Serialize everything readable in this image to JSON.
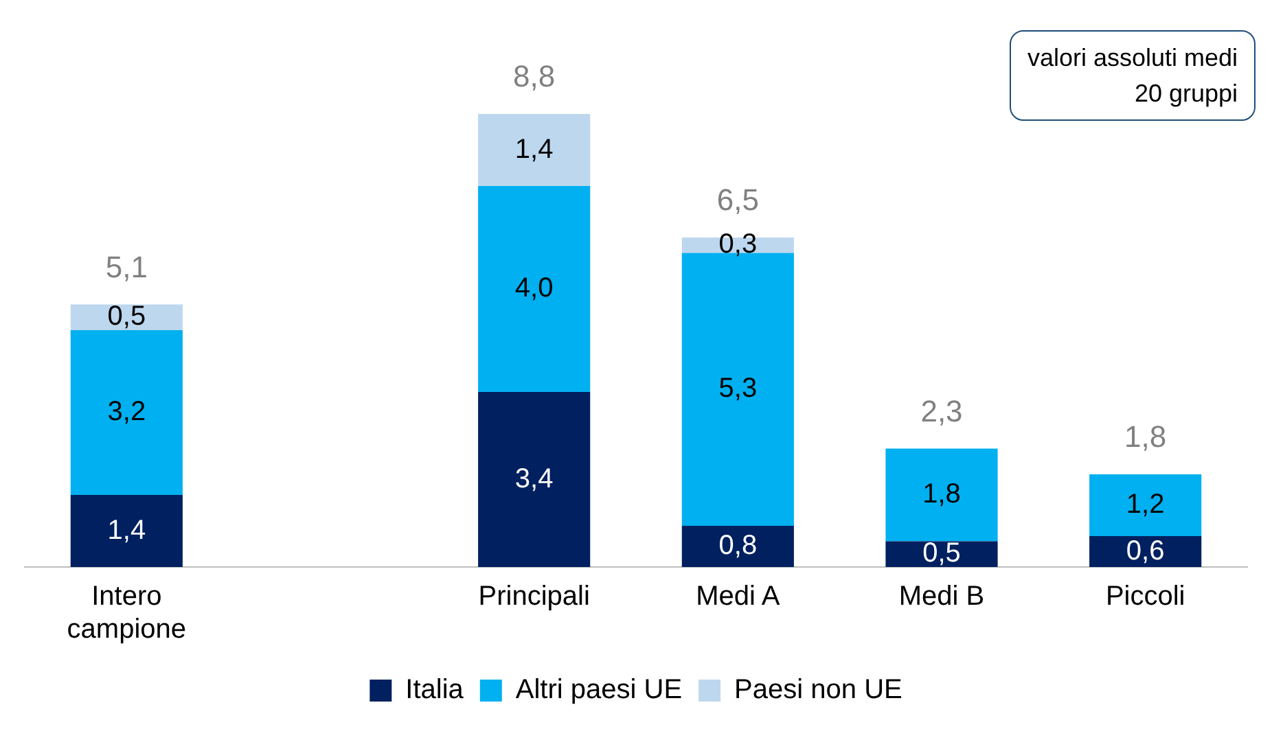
{
  "chart_data": {
    "type": "bar",
    "stacked": true,
    "categories": [
      "Intero campione",
      null,
      "Principali",
      "Medi A",
      "Medi B",
      "Piccoli"
    ],
    "series": [
      {
        "name": "Italia",
        "color": "#002060",
        "values": [
          1.4,
          null,
          3.4,
          0.8,
          0.5,
          0.6
        ],
        "value_labels": [
          "1,4",
          null,
          "3,4",
          "0,8",
          "0,5",
          "0,6"
        ]
      },
      {
        "name": "Altri paesi UE",
        "color": "#00b0f0",
        "values": [
          3.2,
          null,
          4.0,
          5.3,
          1.8,
          1.2
        ],
        "value_labels": [
          "3,2",
          null,
          "4,0",
          "5,3",
          "1,8",
          "1,2"
        ]
      },
      {
        "name": "Paesi non UE",
        "color": "#bdd7ee",
        "values": [
          0.5,
          null,
          1.4,
          0.3,
          null,
          null
        ],
        "value_labels": [
          "0,5",
          null,
          "1,4",
          "0,3",
          null,
          null
        ]
      }
    ],
    "totals": [
      "5,1",
      null,
      "8,8",
      "6,5",
      "2,3",
      "1,8"
    ],
    "annotations": [
      "valori assoluti medi\n20 gruppi"
    ],
    "legend": "bottom",
    "grid": false
  }
}
